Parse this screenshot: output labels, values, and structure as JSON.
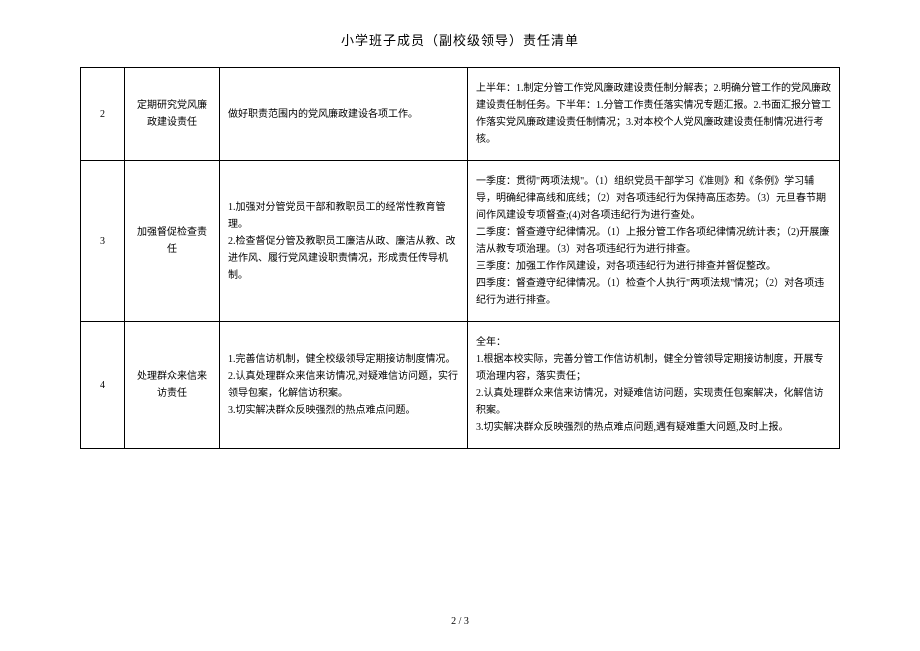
{
  "title": "小学班子成员（副校级领导）责任清单",
  "rows": [
    {
      "num": "2",
      "label": "定期研究党风廉政建设责任",
      "col3": "做好职责范围内的党风廉政建设各项工作。",
      "col4": "上半年：1.制定分管工作党风廉政建设责任制分解表；2.明确分管工作的党风廉政建设责任制任务。下半年：1.分管工作责任落实情况专题汇报。2.书面汇报分管工作落实党风廉政建设责任制情况；3.对本校个人党风廉政建设责任制情况进行考核。"
    },
    {
      "num": "3",
      "label": "加强督促检查责任",
      "col3": "1.加强对分管党员干部和教职员工的经常性教育管理。\n2.检查督促分管及教职员工廉洁从政、廉洁从教、改进作风、履行党风建设职责情况，形成责任传导机制。",
      "col4": "一季度：贯彻\"两项法规\"。（1）组织党员干部学习《准则》和《条例》学习辅导，明确纪律高线和底线；（2）对各项违纪行为保持高压态势。（3）元旦春节期间作风建设专项督查;(4)对各项违纪行为进行查处。\n二季度：督查遵守纪律情况。（1）上报分管工作各项纪律情况统计表；（2)开展廉洁从教专项治理。（3）对各项违纪行为进行排查。\n三季度：加强工作作风建设，对各项违纪行为进行排查并督促整改。\n四季度：督查遵守纪律情况。（1）检查个人执行\"两项法规\"情况；（2）对各项违纪行为进行排查。"
    },
    {
      "num": "4",
      "label": "处理群众来信来访责任",
      "col3": "1.完善信访机制，健全校级领导定期接访制度情况。\n2.认真处理群众来信来访情况,对疑难信访问题，实行领导包案，化解信访积案。\n3.切实解决群众反映强烈的热点难点问题。",
      "col4": "全年：\n1.根据本校实际，完善分管工作信访机制，健全分管领导定期接访制度，开展专项治理内容，落实责任；\n2.认真处理群众来信来访情况，对疑难信访问题，实现责任包案解决，化解信访积案。\n3.切实解决群众反映强烈的热点难点问题,遇有疑难重大问题,及时上报。"
    }
  ],
  "footer": "2 / 3"
}
